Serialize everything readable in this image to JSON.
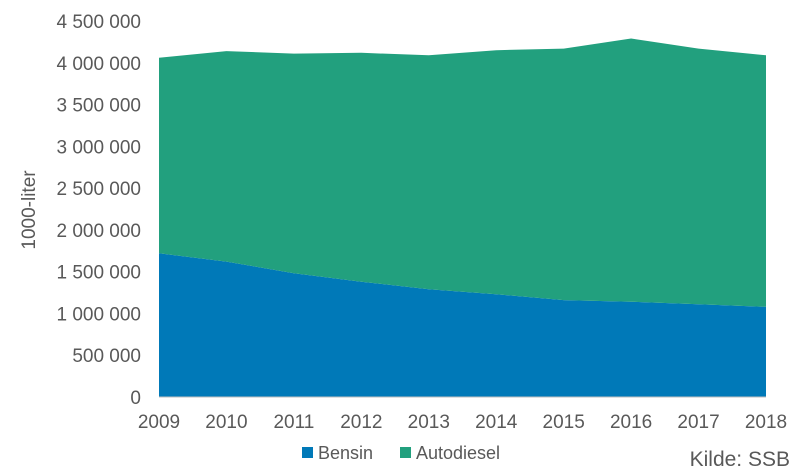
{
  "chart_data": {
    "type": "area",
    "stacked": true,
    "x": [
      "2009",
      "2010",
      "2011",
      "2012",
      "2013",
      "2014",
      "2015",
      "2016",
      "2017",
      "2018"
    ],
    "series": [
      {
        "name": "Bensin",
        "color": "#0079b8",
        "values": [
          1720000,
          1620000,
          1480000,
          1380000,
          1290000,
          1230000,
          1160000,
          1140000,
          1110000,
          1080000
        ]
      },
      {
        "name": "Autodiesel",
        "color": "#22a07e",
        "values": [
          2340000,
          2520000,
          2630000,
          2740000,
          2800000,
          2920000,
          3010000,
          3150000,
          3060000,
          3010000
        ]
      }
    ],
    "ylabel": "1000-liter",
    "xlabel": "",
    "ylim": [
      0,
      4500000
    ],
    "yticks": [
      "0",
      "500 000",
      "1 000 000",
      "1 500 000",
      "2 000 000",
      "2 500 000",
      "3 000 000",
      "3 500 000",
      "4 000 000",
      "4 500 000"
    ],
    "grid": false,
    "legend_position": "bottom"
  },
  "source_label": "Kilde: SSB"
}
